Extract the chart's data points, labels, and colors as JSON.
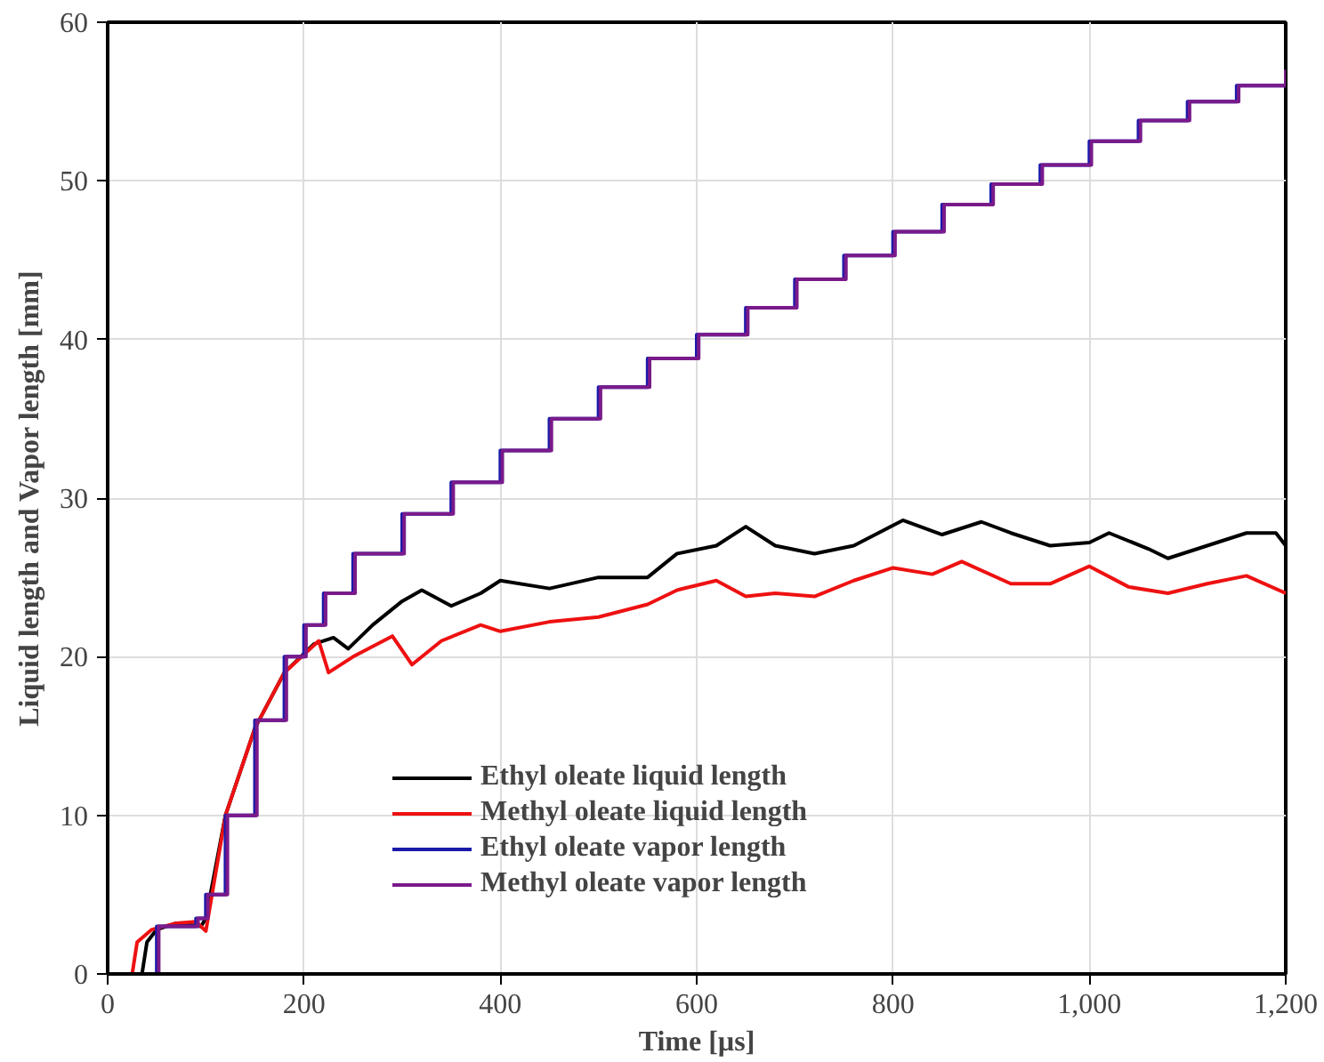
{
  "chart_data": {
    "type": "line",
    "xlabel": "Time [µs]",
    "ylabel": "Liquid length and Vapor length [mm]",
    "xlim": [
      0,
      1200
    ],
    "ylim": [
      0,
      60
    ],
    "xticks": [
      0,
      200,
      400,
      600,
      800,
      {
        "value": 1000,
        "label": "1,000"
      },
      {
        "value": 1200,
        "label": "1,200"
      }
    ],
    "yticks": [
      0,
      10,
      20,
      30,
      40,
      50,
      60
    ],
    "grid": true,
    "legend": "bottom",
    "line_style": "solid",
    "marker": "none",
    "series": [
      {
        "name": "Ethyl oleate liquid length",
        "color": "#000000",
        "x": [
          0,
          35,
          40,
          50,
          70,
          95,
          100,
          120,
          150,
          180,
          210,
          230,
          245,
          270,
          300,
          320,
          350,
          380,
          400,
          450,
          500,
          550,
          580,
          620,
          650,
          680,
          720,
          760,
          810,
          850,
          890,
          920,
          960,
          1000,
          1020,
          1060,
          1080,
          1120,
          1160,
          1190,
          1200
        ],
        "values": [
          0,
          0,
          2,
          2.8,
          3.2,
          3,
          3.5,
          10,
          15.5,
          19,
          20.8,
          21.2,
          20.5,
          22,
          23.5,
          24.2,
          23.2,
          24,
          24.8,
          24.3,
          25,
          25,
          26.5,
          27,
          28.2,
          27,
          26.5,
          27,
          28.6,
          27.7,
          28.5,
          27.8,
          27,
          27.2,
          27.8,
          26.8,
          26.2,
          27,
          27.8,
          27.8,
          27
        ]
      },
      {
        "name": "Methyl oleate liquid length",
        "color": "#ee1111",
        "x": [
          0,
          25,
          30,
          45,
          70,
          90,
          100,
          120,
          150,
          180,
          215,
          225,
          250,
          290,
          310,
          340,
          380,
          400,
          450,
          500,
          550,
          580,
          620,
          650,
          680,
          720,
          760,
          800,
          840,
          870,
          920,
          960,
          1000,
          1040,
          1080,
          1120,
          1160,
          1200
        ],
        "values": [
          0,
          0,
          2,
          2.8,
          3.2,
          3.3,
          2.7,
          10,
          15.5,
          19,
          21,
          19,
          20,
          21.3,
          19.5,
          21,
          22,
          21.6,
          22.2,
          22.5,
          23.3,
          24.2,
          24.8,
          23.8,
          24,
          23.8,
          24.8,
          25.6,
          25.2,
          26,
          24.6,
          24.6,
          25.7,
          24.4,
          24,
          24.6,
          25.1,
          24
        ]
      },
      {
        "name": "Ethyl oleate vapor length",
        "color": "#1a1aaa",
        "type": "step",
        "x": [
          0,
          45,
          50,
          90,
          100,
          120,
          150,
          180,
          200,
          220,
          250,
          300,
          350,
          400,
          450,
          500,
          550,
          600,
          650,
          700,
          750,
          800,
          850,
          900,
          950,
          1000,
          1050,
          1100,
          1150,
          1200
        ],
        "values": [
          0,
          0,
          3,
          3.5,
          5,
          10,
          16,
          20,
          22,
          24,
          26.5,
          29,
          31,
          33,
          35,
          37,
          38.8,
          40.3,
          42,
          43.8,
          45.3,
          46.8,
          48.5,
          49.8,
          51,
          52.5,
          53.8,
          55,
          56,
          57
        ]
      },
      {
        "name": "Methyl oleate vapor length",
        "color": "#7a1a8a",
        "type": "step",
        "x": [
          0,
          48,
          52,
          92,
          102,
          122,
          152,
          182,
          202,
          222,
          252,
          302,
          352,
          402,
          452,
          502,
          552,
          602,
          652,
          702,
          752,
          802,
          852,
          902,
          952,
          1002,
          1052,
          1102,
          1152,
          1200
        ],
        "values": [
          0,
          0,
          3,
          3.5,
          5,
          10,
          16,
          20,
          22,
          24,
          26.5,
          29,
          31,
          33,
          35,
          37,
          38.8,
          40.3,
          42,
          43.8,
          45.3,
          46.8,
          48.5,
          49.8,
          51,
          52.5,
          53.8,
          55,
          56,
          57
        ]
      }
    ]
  }
}
